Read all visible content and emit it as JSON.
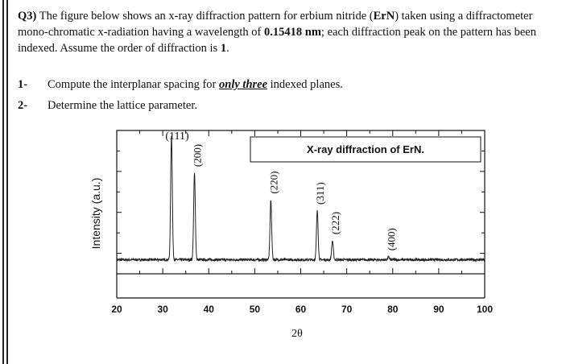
{
  "question": {
    "prefix": "Q3)",
    "text_1": " The figure below shows an x-ray diffraction pattern for erbium nitride (",
    "compound": "ErN",
    "text_2": ") taken using a diffractometer mono-chromatic x-radiation having a wavelength of ",
    "wavelength": "0.15418 nm",
    "text_3": "; each diffraction peak on the pattern has been indexed. Assume the order of diffraction is ",
    "order": "1",
    "text_4": "."
  },
  "tasks": [
    {
      "number": "1-",
      "before": "Compute the interplanar spacing for ",
      "emphasis": "only three",
      "after": " indexed planes."
    },
    {
      "number": "2-",
      "before": "Determine the lattice parameter.",
      "emphasis": "",
      "after": ""
    }
  ],
  "chart_data": {
    "type": "line",
    "title": "X-ray diffraction of ErN.",
    "xlabel": "2θ",
    "ylabel": "Intensity (a.u.)",
    "xlim": [
      20,
      100
    ],
    "ylim": [
      0,
      1
    ],
    "x_ticks": [
      20,
      30,
      40,
      50,
      60,
      70,
      80,
      90,
      100
    ],
    "grid": false,
    "legend": "top-right",
    "baseline": 0.08,
    "peaks": [
      {
        "label": "(111)",
        "two_theta": 31.9,
        "intensity": 1.0
      },
      {
        "label": "(200)",
        "two_theta": 36.9,
        "intensity": 0.72
      },
      {
        "label": "(220)",
        "two_theta": 53.5,
        "intensity": 0.52
      },
      {
        "label": "(311)",
        "two_theta": 63.6,
        "intensity": 0.44
      },
      {
        "label": "(222)",
        "two_theta": 66.9,
        "intensity": 0.22
      },
      {
        "label": "(400)",
        "two_theta": 79.1,
        "intensity": 0.1
      }
    ]
  }
}
